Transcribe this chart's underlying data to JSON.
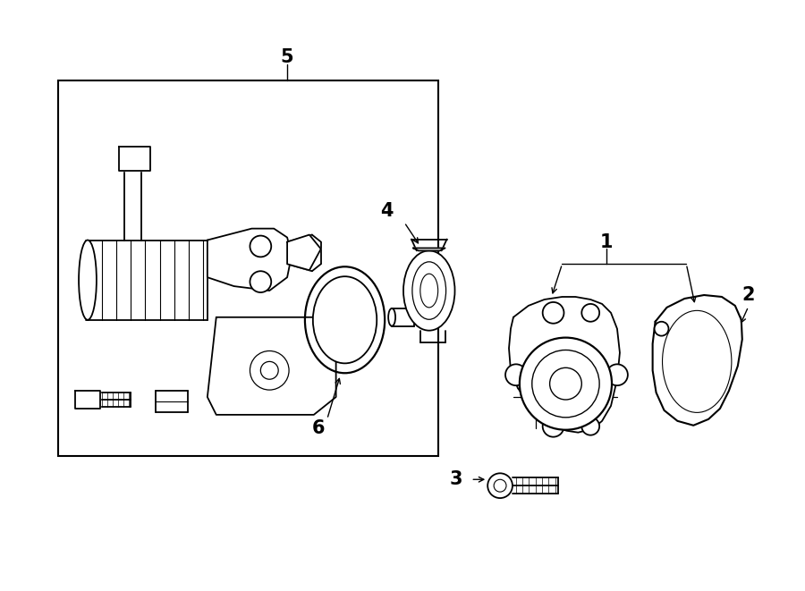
{
  "bg_color": "#ffffff",
  "line_color": "#000000",
  "fig_width": 9.0,
  "fig_height": 6.61,
  "dpi": 100,
  "lw": 1.3
}
